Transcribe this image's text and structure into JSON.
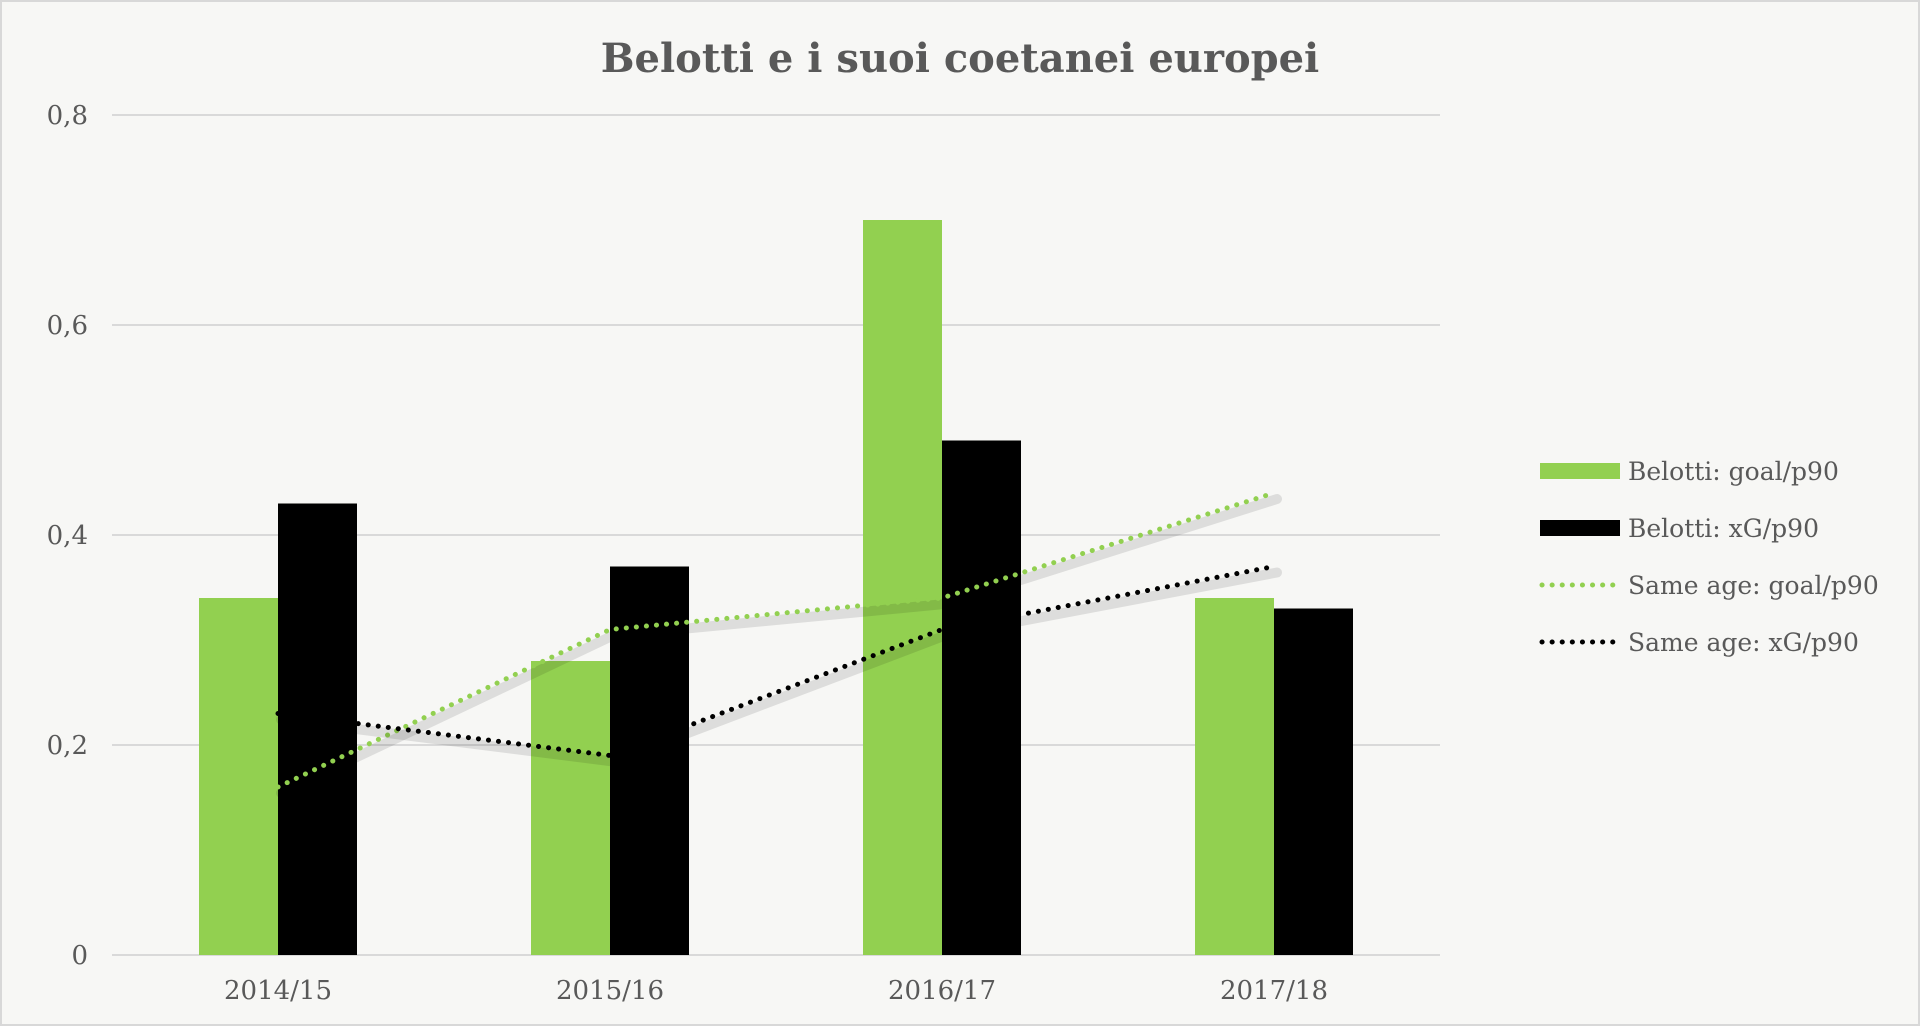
{
  "chart_data": {
    "type": "bar",
    "title": "Belotti e i suoi coetanei europei",
    "categories": [
      "2014/15",
      "2015/16",
      "2016/17",
      "2017/18"
    ],
    "ylim": [
      0,
      0.8
    ],
    "yticks": [
      "0",
      "0,2",
      "0,4",
      "0,6",
      "0,8"
    ],
    "grid": true,
    "legend_position": "right",
    "series": [
      {
        "name": "Belotti: goal/p90",
        "kind": "bar",
        "color": "#92d050",
        "values": [
          0.34,
          0.28,
          0.7,
          0.34
        ]
      },
      {
        "name": "Belotti: xG/p90",
        "kind": "bar",
        "color": "#000000",
        "values": [
          0.43,
          0.37,
          0.49,
          0.33
        ]
      },
      {
        "name": "Same age: goal/p90",
        "kind": "line",
        "style": "dotted",
        "color": "#92d050",
        "values": [
          0.16,
          0.31,
          0.34,
          0.44
        ]
      },
      {
        "name": "Same age: xG/p90",
        "kind": "line",
        "style": "dotted",
        "color": "#000000",
        "values": [
          0.23,
          0.19,
          0.31,
          0.37
        ]
      }
    ]
  }
}
